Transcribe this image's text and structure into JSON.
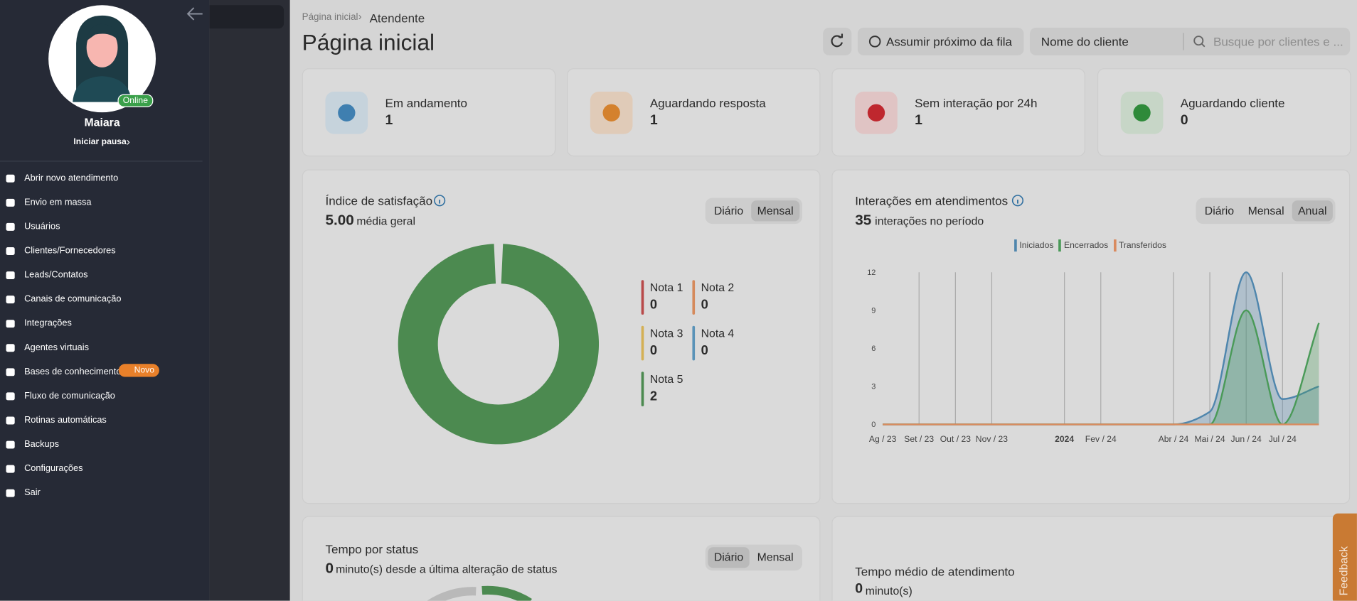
{
  "sidebar": {
    "user": "Maiara",
    "status": "Online",
    "pause": "Iniciar pausa",
    "badge": "Novo",
    "menu": [
      "Abrir novo atendimento",
      "Envio em massa",
      "Usuários",
      "Clientes/Fornecedores",
      "Leads/Contatos",
      "Canais de comunicação",
      "Integrações",
      "Agentes virtuais",
      "Bases de conhecimento",
      "Fluxo de comunicação",
      "Rotinas automáticas",
      "Backups",
      "Configurações",
      "Sair"
    ]
  },
  "header": {
    "breadcrumb": [
      "Página inicial",
      "Atendente"
    ],
    "title": "Página inicial",
    "queue_button": "Assumir próximo da fila",
    "client_field": "Nome do cliente",
    "search_placeholder": "Busque por clientes e ..."
  },
  "cards": [
    {
      "label": "Em andamento",
      "value": 1
    },
    {
      "label": "Aguardando resposta",
      "value": 1
    },
    {
      "label": "Sem interação por 24h",
      "value": 1
    },
    {
      "label": "Aguardando cliente",
      "value": 0
    }
  ],
  "satisfaction": {
    "title": "Índice de satisfação",
    "score": "5.00",
    "score_label": "média geral",
    "tabs": [
      "Diário",
      "Mensal"
    ],
    "selected_tab": "Mensal",
    "type": "pie",
    "legend": [
      {
        "name": "Nota 1",
        "value": 0,
        "color": "#b84a4a"
      },
      {
        "name": "Nota 2",
        "value": 0,
        "color": "#d58a5c"
      },
      {
        "name": "Nota 3",
        "value": 0,
        "color": "#d4b055"
      },
      {
        "name": "Nota 4",
        "value": 0,
        "color": "#5a93b8"
      },
      {
        "name": "Nota 5",
        "value": 2,
        "color": "#4c8a50"
      }
    ]
  },
  "interactions": {
    "title": "Interações em atendimentos",
    "count": 35,
    "count_label": "interações no período",
    "tabs": [
      "Diário",
      "Mensal",
      "Anual"
    ],
    "selected_tab": "Anual",
    "chart_data": {
      "type": "line",
      "categories": [
        "Ag / 23",
        "Set / 23",
        "Out / 23",
        "Nov / 23",
        null,
        "2024",
        "Fev / 24",
        null,
        "Abr / 24",
        "Mai / 24",
        "Jun / 24",
        "Jul / 24",
        null
      ],
      "series": [
        {
          "name": "Iniciados",
          "color": "#4f86ad",
          "values": [
            0,
            0,
            0,
            0,
            0,
            0,
            0,
            0,
            0,
            1,
            12,
            2,
            3
          ]
        },
        {
          "name": "Encerrados",
          "color": "#4a9a58",
          "values": [
            0,
            0,
            0,
            0,
            0,
            0,
            0,
            0,
            0,
            0,
            9,
            0,
            8
          ]
        },
        {
          "name": "Transferidos",
          "color": "#d98b5f",
          "values": [
            0,
            0,
            0,
            0,
            0,
            0,
            0,
            0,
            0,
            0,
            0,
            0,
            0
          ]
        }
      ],
      "ylim": [
        0,
        12
      ],
      "yticks": [
        0,
        3,
        6,
        9,
        12
      ],
      "grid": true
    }
  },
  "status_time": {
    "title": "Tempo por status",
    "value": 0,
    "label": "minuto(s) desde a última alteração de status",
    "tabs": [
      "Diário",
      "Mensal"
    ],
    "selected_tab": "Diário"
  },
  "avg_time": {
    "title": "Tempo médio de atendimento",
    "value": 0,
    "label": "minuto(s)"
  },
  "feedback": "Feedback"
}
